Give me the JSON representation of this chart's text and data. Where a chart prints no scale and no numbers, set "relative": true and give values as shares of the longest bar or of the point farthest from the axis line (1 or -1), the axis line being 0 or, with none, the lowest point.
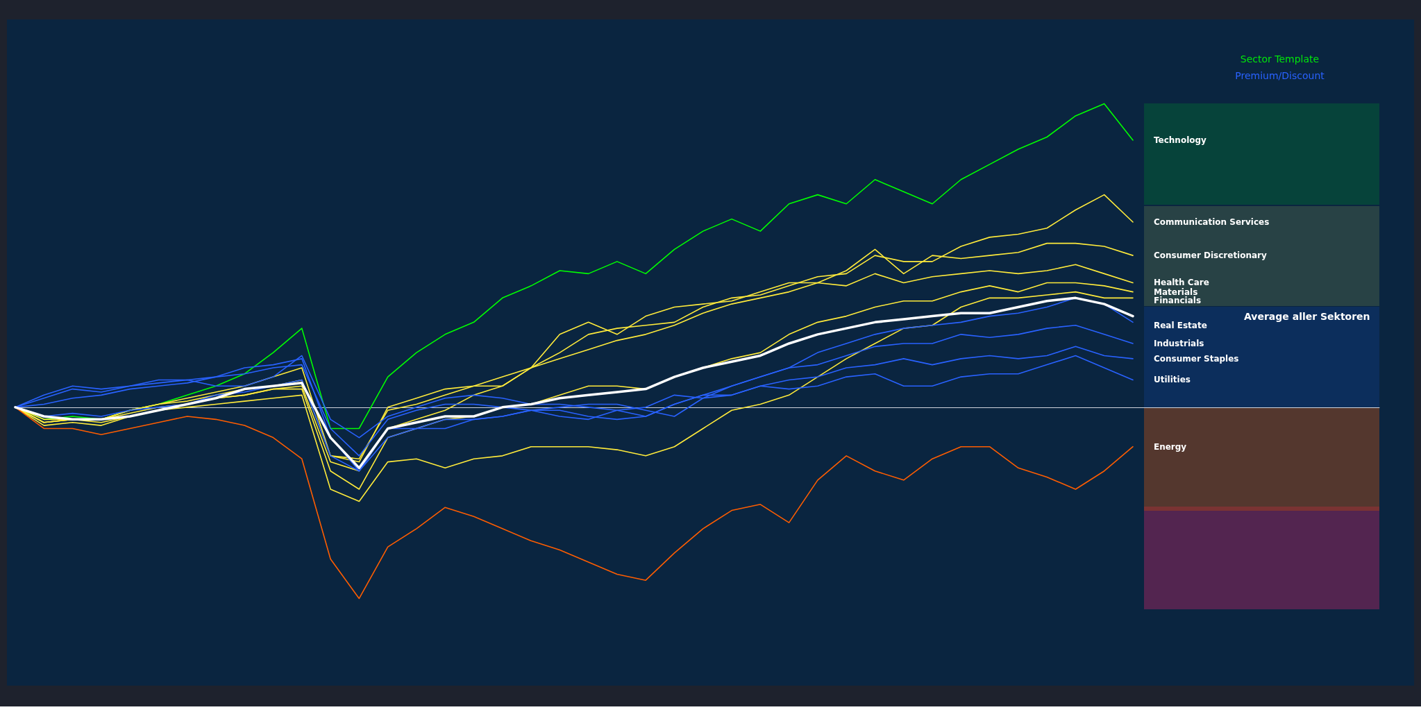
{
  "chart_data": {
    "type": "line",
    "title": "Sector Template",
    "subtitle": "Premium/Discount",
    "relative": true,
    "legend": false,
    "grid": false,
    "marker": "none",
    "line_style": "solid",
    "categories": [
      null,
      null,
      null,
      null,
      null,
      null,
      null,
      null,
      null,
      null,
      null,
      null,
      null,
      null,
      null,
      null,
      null,
      null,
      null,
      null,
      null,
      null,
      null,
      null,
      null,
      null,
      null,
      null,
      null,
      null,
      null,
      null,
      null,
      null,
      null,
      null,
      null,
      null,
      null,
      null
    ],
    "series": [
      {
        "name": "Technology",
        "color": "#00ff00",
        "values": [
          0,
          -0.04,
          -0.03,
          -0.04,
          -0.01,
          0.01,
          0.04,
          0.07,
          0.11,
          0.18,
          0.26,
          -0.07,
          -0.07,
          0.1,
          0.18,
          0.24,
          0.28,
          0.36,
          0.4,
          0.45,
          0.44,
          0.48,
          0.44,
          0.52,
          0.58,
          0.62,
          0.58,
          0.67,
          0.7,
          0.67,
          0.75,
          0.71,
          0.67,
          0.75,
          0.8,
          0.85,
          0.89,
          0.96,
          1.0,
          0.88
        ]
      },
      {
        "name": "Communication Services",
        "color": "#ffeb3b",
        "values": [
          0,
          -0.05,
          -0.04,
          -0.04,
          -0.01,
          0.01,
          0.02,
          0.04,
          0.06,
          0.07,
          0.09,
          -0.16,
          -0.18,
          0,
          0.03,
          0.06,
          0.07,
          0.1,
          0.13,
          0.18,
          0.24,
          0.26,
          0.27,
          0.28,
          0.33,
          0.36,
          0.37,
          0.4,
          0.43,
          0.44,
          0.5,
          0.48,
          0.48,
          0.53,
          0.56,
          0.57,
          0.59,
          0.65,
          0.7,
          0.61
        ]
      },
      {
        "name": "Consumer Discretionary",
        "color": "#ffeb3b",
        "values": [
          0,
          -0.05,
          -0.04,
          -0.04,
          -0.01,
          0.01,
          0.03,
          0.05,
          0.07,
          0.1,
          0.13,
          -0.16,
          -0.17,
          -0.01,
          0.01,
          0.04,
          0.07,
          0.07,
          0.13,
          0.24,
          0.28,
          0.24,
          0.3,
          0.33,
          0.34,
          0.35,
          0.38,
          0.41,
          0.41,
          0.45,
          0.52,
          0.44,
          0.5,
          0.49,
          0.5,
          0.51,
          0.54,
          0.54,
          0.53,
          0.5
        ]
      },
      {
        "name": "Health Care",
        "color": "#ffeb3b",
        "values": [
          0,
          -0.04,
          -0.04,
          -0.04,
          -0.02,
          0,
          0.01,
          0.03,
          0.04,
          0.06,
          0.07,
          -0.18,
          -0.21,
          -0.07,
          -0.04,
          -0.01,
          0.04,
          0.07,
          0.13,
          0.16,
          0.19,
          0.22,
          0.24,
          0.27,
          0.31,
          0.34,
          0.36,
          0.38,
          0.41,
          0.4,
          0.44,
          0.41,
          0.43,
          0.44,
          0.45,
          0.44,
          0.45,
          0.47,
          0.44,
          0.41
        ]
      },
      {
        "name": "Materials",
        "color": "#ffeb3b",
        "values": [
          0,
          -0.05,
          -0.04,
          -0.05,
          -0.03,
          -0.01,
          0.01,
          0.03,
          0.04,
          0.06,
          0.06,
          -0.21,
          -0.27,
          -0.1,
          -0.07,
          -0.04,
          -0.03,
          0,
          0.01,
          0.04,
          0.07,
          0.07,
          0.06,
          0.1,
          0.13,
          0.16,
          0.18,
          0.24,
          0.28,
          0.3,
          0.33,
          0.35,
          0.35,
          0.38,
          0.4,
          0.38,
          0.41,
          0.41,
          0.4,
          0.38
        ]
      },
      {
        "name": "Financials",
        "color": "#ffeb3b",
        "values": [
          0,
          -0.06,
          -0.05,
          -0.06,
          -0.03,
          -0.01,
          0,
          0.01,
          0.02,
          0.03,
          0.04,
          -0.27,
          -0.31,
          -0.18,
          -0.17,
          -0.2,
          -0.17,
          -0.16,
          -0.13,
          -0.13,
          -0.13,
          -0.14,
          -0.16,
          -0.13,
          -0.07,
          -0.01,
          0.01,
          0.04,
          0.1,
          0.16,
          0.21,
          0.26,
          0.27,
          0.33,
          0.36,
          0.36,
          0.37,
          0.38,
          0.36,
          0.36
        ]
      },
      {
        "name": "Real Estate",
        "color": "#2962ff",
        "values": [
          0,
          0.01,
          0.03,
          0.04,
          0.06,
          0.07,
          0.08,
          0.1,
          0.13,
          0.14,
          0.16,
          -0.1,
          -0.21,
          -0.07,
          -0.07,
          -0.07,
          -0.04,
          -0.03,
          -0.01,
          -0.01,
          -0.03,
          -0.04,
          -0.03,
          0.01,
          0.04,
          0.07,
          0.1,
          0.13,
          0.18,
          0.21,
          0.24,
          0.26,
          0.27,
          0.28,
          0.3,
          0.31,
          0.33,
          0.36,
          0.34,
          0.28
        ]
      },
      {
        "name": "Industrials",
        "color": "#2962ff",
        "values": [
          0,
          -0.03,
          -0.02,
          -0.03,
          -0.01,
          0,
          0.01,
          0.04,
          0.05,
          0.07,
          0.09,
          -0.16,
          -0.21,
          -0.1,
          -0.07,
          -0.04,
          -0.04,
          -0.03,
          -0.01,
          0,
          0.01,
          0.01,
          -0.01,
          -0.03,
          0.03,
          0.07,
          0.1,
          0.13,
          0.14,
          0.17,
          0.2,
          0.21,
          0.21,
          0.24,
          0.23,
          0.24,
          0.26,
          0.27,
          0.24,
          0.21
        ]
      },
      {
        "name": "Consumer Staples",
        "color": "#2962ff",
        "values": [
          0,
          0.03,
          0.06,
          0.05,
          0.07,
          0.08,
          0.09,
          0.07,
          0.07,
          0.1,
          0.17,
          -0.04,
          -0.1,
          -0.03,
          0,
          0.03,
          0.04,
          0.03,
          0.01,
          0.01,
          0,
          -0.01,
          -0.03,
          0.01,
          0.04,
          0.04,
          0.07,
          0.09,
          0.1,
          0.13,
          0.14,
          0.16,
          0.14,
          0.16,
          0.17,
          0.16,
          0.17,
          0.2,
          0.17,
          0.16
        ]
      },
      {
        "name": "Utilities",
        "color": "#2962ff",
        "values": [
          0,
          0.04,
          0.07,
          0.06,
          0.07,
          0.09,
          0.09,
          0.1,
          0.11,
          0.13,
          0.14,
          -0.07,
          -0.16,
          -0.04,
          -0.01,
          0.01,
          0.01,
          0,
          -0.01,
          -0.03,
          -0.04,
          -0.01,
          0,
          0.04,
          0.03,
          0.04,
          0.07,
          0.06,
          0.07,
          0.1,
          0.11,
          0.07,
          0.07,
          0.1,
          0.11,
          0.11,
          0.14,
          0.17,
          0.13,
          0.09
        ]
      },
      {
        "name": "Energy",
        "color": "#ff5d00",
        "values": [
          0,
          -0.07,
          -0.07,
          -0.09,
          -0.07,
          -0.05,
          -0.03,
          -0.04,
          -0.06,
          -0.1,
          -0.17,
          -0.5,
          -0.63,
          -0.46,
          -0.4,
          -0.33,
          -0.36,
          -0.4,
          -0.44,
          -0.47,
          -0.51,
          -0.55,
          -0.57,
          -0.48,
          -0.4,
          -0.34,
          -0.32,
          -0.38,
          -0.24,
          -0.16,
          -0.21,
          -0.24,
          -0.17,
          -0.13,
          -0.13,
          -0.2,
          -0.23,
          -0.27,
          -0.21,
          -0.13
        ]
      },
      {
        "name": "Average aller Sektoren",
        "color": "#ffffff",
        "values": [
          0,
          -0.03,
          -0.04,
          -0.04,
          -0.03,
          -0.01,
          0.01,
          0.03,
          0.06,
          0.07,
          0.08,
          -0.1,
          -0.2,
          -0.07,
          -0.05,
          -0.03,
          -0.03,
          0,
          0.01,
          0.03,
          0.04,
          0.05,
          0.06,
          0.1,
          0.13,
          0.15,
          0.17,
          0.21,
          0.24,
          0.26,
          0.28,
          0.29,
          0.3,
          0.31,
          0.31,
          0.33,
          0.35,
          0.36,
          0.34,
          0.3
        ]
      }
    ]
  }
}
